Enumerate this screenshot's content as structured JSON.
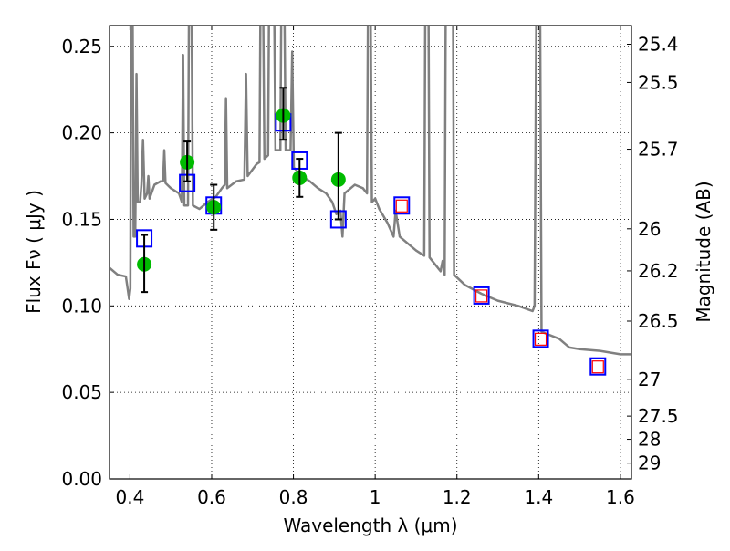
{
  "chart_data": {
    "type": "scatter",
    "xlabel": "Wavelength  λ (μm)",
    "ylabel": "Flux  Fν  ( μJy )",
    "y2label": "Magnitude (AB)",
    "xlim": [
      0.35,
      1.627
    ],
    "ylim": [
      0.0,
      0.262
    ],
    "grid": true,
    "xticks": [
      0.4,
      0.6,
      0.8,
      1.0,
      1.2,
      1.4,
      1.6
    ],
    "xtick_labels": [
      "0.4",
      "0.6",
      "0.8",
      "1",
      "1.2",
      "1.4",
      "1.6"
    ],
    "yticks": [
      0.0,
      0.05,
      0.1,
      0.15,
      0.2,
      0.25
    ],
    "ytick_labels": [
      "0.00",
      "0.05",
      "0.10",
      "0.15",
      "0.20",
      "0.25"
    ],
    "y2ticks": [
      25.4,
      25.5,
      25.7,
      26,
      26.2,
      26.5,
      27,
      27.5,
      28,
      29
    ],
    "y2tick_labels": [
      "25.4",
      "25.5",
      "25.7",
      "26",
      "26.2",
      "26.5",
      "27",
      "27.5",
      "28",
      "29"
    ],
    "colors": {
      "spectrum": "#808080",
      "observed": "#00bb00",
      "model": "#0000ff",
      "nir": "#ff0000",
      "error": "#000000"
    },
    "spectrum": [
      [
        0.35,
        0.122
      ],
      [
        0.37,
        0.118
      ],
      [
        0.39,
        0.117
      ],
      [
        0.398,
        0.104
      ],
      [
        0.401,
        0.11
      ],
      [
        0.403,
        0.3
      ],
      [
        0.406,
        0.3
      ],
      [
        0.409,
        0.14
      ],
      [
        0.413,
        0.14
      ],
      [
        0.416,
        0.234
      ],
      [
        0.419,
        0.16
      ],
      [
        0.425,
        0.16
      ],
      [
        0.428,
        0.17
      ],
      [
        0.432,
        0.196
      ],
      [
        0.436,
        0.162
      ],
      [
        0.442,
        0.165
      ],
      [
        0.445,
        0.175
      ],
      [
        0.448,
        0.162
      ],
      [
        0.46,
        0.17
      ],
      [
        0.475,
        0.172
      ],
      [
        0.481,
        0.172
      ],
      [
        0.484,
        0.19
      ],
      [
        0.487,
        0.171
      ],
      [
        0.5,
        0.168
      ],
      [
        0.52,
        0.165
      ],
      [
        0.527,
        0.16
      ],
      [
        0.53,
        0.245
      ],
      [
        0.533,
        0.158
      ],
      [
        0.542,
        0.158
      ],
      [
        0.545,
        0.3
      ],
      [
        0.55,
        0.3
      ],
      [
        0.554,
        0.158
      ],
      [
        0.57,
        0.156
      ],
      [
        0.59,
        0.16
      ],
      [
        0.61,
        0.163
      ],
      [
        0.625,
        0.168
      ],
      [
        0.632,
        0.17
      ],
      [
        0.635,
        0.22
      ],
      [
        0.638,
        0.168
      ],
      [
        0.66,
        0.172
      ],
      [
        0.68,
        0.173
      ],
      [
        0.684,
        0.234
      ],
      [
        0.688,
        0.175
      ],
      [
        0.71,
        0.182
      ],
      [
        0.717,
        0.183
      ],
      [
        0.72,
        0.3
      ],
      [
        0.725,
        0.3
      ],
      [
        0.729,
        0.185
      ],
      [
        0.738,
        0.187
      ],
      [
        0.741,
        0.3
      ],
      [
        0.752,
        0.3
      ],
      [
        0.756,
        0.19
      ],
      [
        0.768,
        0.19
      ],
      [
        0.771,
        0.3
      ],
      [
        0.777,
        0.3
      ],
      [
        0.781,
        0.19
      ],
      [
        0.793,
        0.19
      ],
      [
        0.797,
        0.247
      ],
      [
        0.801,
        0.18
      ],
      [
        0.82,
        0.175
      ],
      [
        0.84,
        0.172
      ],
      [
        0.86,
        0.168
      ],
      [
        0.88,
        0.165
      ],
      [
        0.895,
        0.16
      ],
      [
        0.905,
        0.153
      ],
      [
        0.915,
        0.155
      ],
      [
        0.92,
        0.14
      ],
      [
        0.925,
        0.165
      ],
      [
        0.95,
        0.17
      ],
      [
        0.97,
        0.168
      ],
      [
        0.98,
        0.165
      ],
      [
        0.983,
        0.3
      ],
      [
        0.988,
        0.3
      ],
      [
        0.992,
        0.16
      ],
      [
        1.0,
        0.162
      ],
      [
        1.01,
        0.156
      ],
      [
        1.03,
        0.148
      ],
      [
        1.045,
        0.14
      ],
      [
        1.05,
        0.155
      ],
      [
        1.06,
        0.14
      ],
      [
        1.1,
        0.132
      ],
      [
        1.12,
        0.129
      ],
      [
        1.123,
        0.3
      ],
      [
        1.13,
        0.3
      ],
      [
        1.133,
        0.128
      ],
      [
        1.16,
        0.12
      ],
      [
        1.165,
        0.126
      ],
      [
        1.17,
        0.118
      ],
      [
        1.173,
        0.3
      ],
      [
        1.19,
        0.3
      ],
      [
        1.193,
        0.118
      ],
      [
        1.22,
        0.112
      ],
      [
        1.26,
        0.107
      ],
      [
        1.3,
        0.103
      ],
      [
        1.35,
        0.1
      ],
      [
        1.385,
        0.097
      ],
      [
        1.39,
        0.1
      ],
      [
        1.395,
        0.3
      ],
      [
        1.403,
        0.3
      ],
      [
        1.407,
        0.085
      ],
      [
        1.45,
        0.081
      ],
      [
        1.475,
        0.076
      ],
      [
        1.5,
        0.075
      ],
      [
        1.55,
        0.074
      ],
      [
        1.6,
        0.072
      ],
      [
        1.627,
        0.072
      ]
    ],
    "model_points": {
      "x": [
        0.435,
        0.54,
        0.605,
        0.775,
        0.815,
        0.91,
        1.065,
        1.26,
        1.405,
        1.545
      ],
      "y": [
        0.139,
        0.171,
        0.158,
        0.206,
        0.184,
        0.15,
        0.158,
        0.106,
        0.081,
        0.065
      ]
    },
    "nir_points": {
      "x": [
        1.065,
        1.26,
        1.405,
        1.545
      ],
      "y": [
        0.158,
        0.106,
        0.081,
        0.065
      ]
    },
    "observed": {
      "x": [
        0.435,
        0.54,
        0.605,
        0.775,
        0.815,
        0.91
      ],
      "y": [
        0.124,
        0.183,
        0.157,
        0.21,
        0.174,
        0.173
      ],
      "err_low": [
        0.108,
        0.172,
        0.144,
        0.196,
        0.163,
        0.15
      ],
      "err_high": [
        0.141,
        0.195,
        0.17,
        0.226,
        0.185,
        0.2
      ]
    }
  }
}
